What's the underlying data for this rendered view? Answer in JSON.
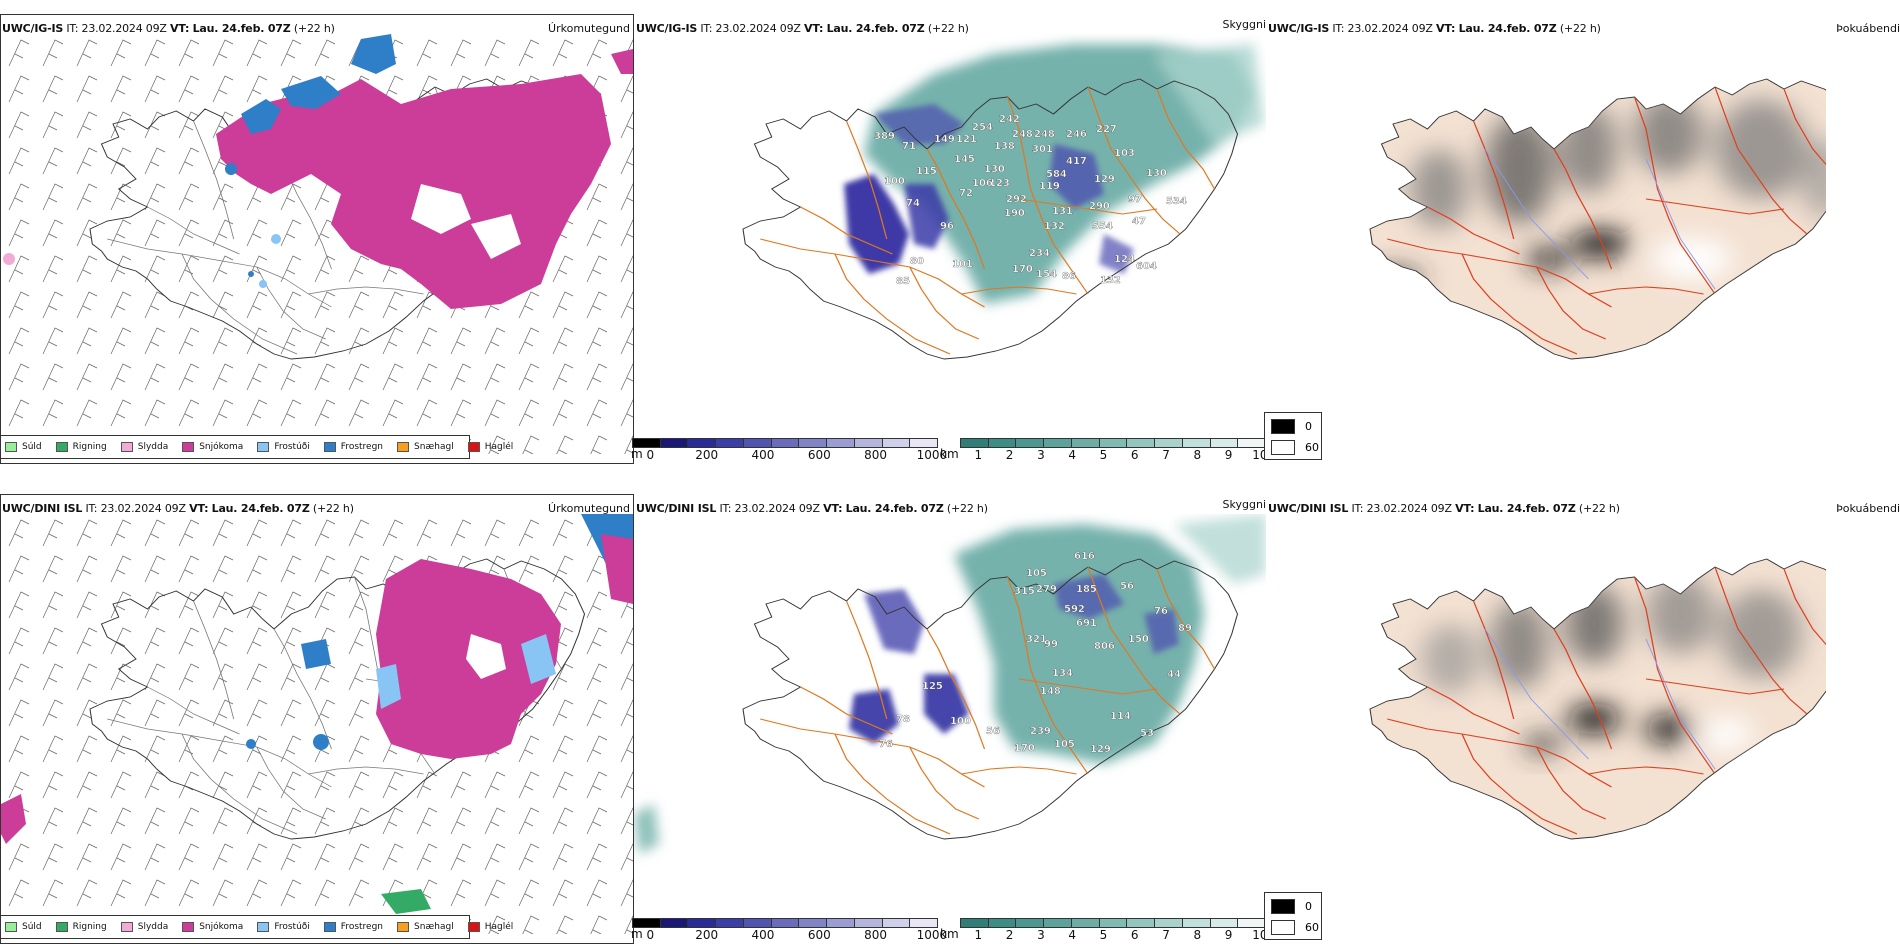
{
  "colors": {
    "sudd": "#99ee99",
    "rigning": "#33aa66",
    "slydda": "#f2aad6",
    "snjokoma": "#cc3c99",
    "frostudi": "#88c4f4",
    "frostregn": "#2e7fc8",
    "snaehagl": "#f5a020",
    "haglel": "#dd1111",
    "road": "#e07820",
    "road_red": "#dd4020",
    "coast": "#333333",
    "cloud_teal": "#2f8f86",
    "vis_blue": "#27249c",
    "land_beige": "#f3e1d2"
  },
  "rows": [
    {
      "model": "UWC/IG-IS",
      "it_label": "IT:",
      "it_value": "23.02.2024 09Z",
      "vt_label": "VT:",
      "vt_value": "Lau. 24.feb. 07Z",
      "lead": "(+22 h)"
    },
    {
      "model": "UWC/DINI ISL",
      "it_label": "IT:",
      "it_value": "23.02.2024 09Z",
      "vt_label": "VT:",
      "vt_value": "Lau. 24.feb. 07Z",
      "lead": "(+22 h)"
    }
  ],
  "panel_titles": {
    "precip": "Úrkomutegund",
    "cloud": "Skyggni",
    "fog": "Þokuábendi"
  },
  "precip_legend": [
    {
      "label": "Súld",
      "color": "#99ee99"
    },
    {
      "label": "Rigning",
      "color": "#33aa66"
    },
    {
      "label": "Slydda",
      "color": "#f2aad6"
    },
    {
      "label": "Snjókoma",
      "color": "#cc3c99"
    },
    {
      "label": "Frostúði",
      "color": "#88c4f4"
    },
    {
      "label": "Frostregn",
      "color": "#2e7fc8"
    },
    {
      "label": "Snæhagl",
      "color": "#f5a020"
    },
    {
      "label": "Haglél",
      "color": "#dd1111"
    }
  ],
  "scale_m": {
    "unit": "m",
    "ticks": [
      "0",
      "200",
      "400",
      "600",
      "800",
      "1000"
    ],
    "colors": [
      "#000000",
      "#1a1877",
      "#2a2b98",
      "#3c3ea8",
      "#5154b0",
      "#6a6cbb",
      "#8083c5",
      "#9a9dd2",
      "#b4b6de",
      "#cfd0ea",
      "#e6e6f4"
    ]
  },
  "scale_km": {
    "unit": "km",
    "ticks": [
      "1",
      "2",
      "3",
      "4",
      "5",
      "6",
      "7",
      "8",
      "9",
      "10"
    ],
    "colors": [
      "#2f7f77",
      "#3e8d85",
      "#4c9890",
      "#5da39b",
      "#6cada6",
      "#7fbab3",
      "#92c6bf",
      "#a8d2cc",
      "#bfe0dc",
      "#d7ece9",
      "#eef7f6"
    ]
  },
  "fog_legend": [
    {
      "label": "0",
      "color": "#000000"
    },
    {
      "label": "60",
      "color": "#ffffff"
    }
  ],
  "vis_labels_top": [
    "389",
    "71",
    "149",
    "121",
    "254",
    "242",
    "248",
    "248",
    "246",
    "227",
    "138",
    "115",
    "145",
    "130",
    "123",
    "301",
    "417",
    "103",
    "100",
    "106",
    "584",
    "129",
    "130",
    "74",
    "72",
    "292",
    "119",
    "290",
    "97",
    "190",
    "131",
    "534",
    "96",
    "132",
    "554",
    "47",
    "234",
    "124",
    "80",
    "101",
    "170",
    "154",
    "86",
    "132",
    "604",
    "85"
  ],
  "vis_labels_bottom": [
    "616",
    "105",
    "315",
    "279",
    "185",
    "56",
    "592",
    "76",
    "691",
    "89",
    "321",
    "150",
    "99",
    "806",
    "134",
    "44",
    "125",
    "148",
    "239",
    "78",
    "100",
    "114",
    "76",
    "56",
    "170",
    "105",
    "129",
    "53"
  ]
}
